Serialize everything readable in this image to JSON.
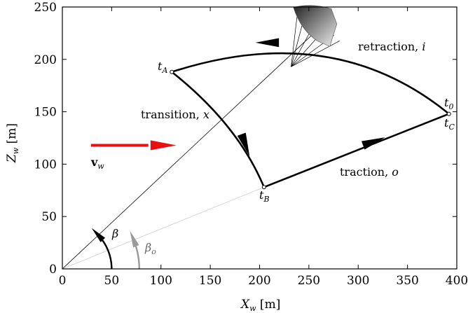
{
  "chart_data": {
    "type": "line",
    "xlabel": "X_w [m]",
    "ylabel": "Z_w [m]",
    "xlim": [
      0,
      400
    ],
    "ylim": [
      0,
      250
    ],
    "x_ticks": [
      0,
      50,
      100,
      150,
      200,
      250,
      300,
      350,
      400
    ],
    "y_ticks": [
      0,
      50,
      100,
      150,
      200,
      250
    ],
    "grid": false,
    "points": {
      "t_A": {
        "label": "t_A",
        "x": 111,
        "y": 188
      },
      "t_B": {
        "label": "t_B",
        "x": 204.5,
        "y": 78
      },
      "t_C": {
        "label": "t_C",
        "x": 392,
        "y": 148
      },
      "t_0": {
        "label": "t_0",
        "x": 392,
        "y": 148
      }
    },
    "phases": [
      {
        "label": "retraction, i",
        "from": "t_C",
        "to": "t_A",
        "shape": "arc",
        "arrow_dir": "to-left"
      },
      {
        "label": "transition, x",
        "from": "t_A",
        "to": "t_B",
        "shape": "arc",
        "arrow_dir": "down"
      },
      {
        "label": "traction, o",
        "from": "t_B",
        "to": "t_C",
        "shape": "line",
        "arrow_dir": "up-right"
      }
    ],
    "tether_lines": [
      {
        "from": [
          0,
          0
        ],
        "to": [
          255,
          225
        ],
        "color": "#000000"
      },
      {
        "from": [
          0,
          0
        ],
        "to": [
          204.5,
          78
        ],
        "color": "#cccccc"
      }
    ],
    "wind": {
      "label": "v_w",
      "from": [
        29,
        118
      ],
      "to": [
        100,
        118
      ],
      "color": "#e81010"
    },
    "angles": [
      {
        "label": "β",
        "color": "#000000",
        "center": [
          0,
          0
        ],
        "radius_x": 50
      },
      {
        "label": "β_o",
        "color": "#999999",
        "center": [
          0,
          0
        ],
        "radius_x": 78
      }
    ],
    "annotations": {
      "retraction": {
        "main": "retraction, ",
        "sym": "i"
      },
      "transition": {
        "main": "transition, ",
        "sym": "x"
      },
      "traction": {
        "main": "traction, ",
        "sym": "o"
      },
      "tA": {
        "main": "t",
        "sub": "A"
      },
      "tB": {
        "main": "t",
        "sub": "B"
      },
      "tC": {
        "main": "t",
        "sub": "C"
      },
      "t0": {
        "main": "t",
        "sub": "0"
      },
      "vw": {
        "main": "v",
        "sub": "w"
      },
      "beta": {
        "main": "β"
      },
      "beta_o": {
        "main": "β",
        "sub": "o"
      },
      "xlabel": {
        "main": "X",
        "sub": "w",
        "rest": " [m]"
      },
      "ylabel": {
        "main": "Z",
        "sub": "w",
        "rest": " [m]"
      }
    }
  }
}
